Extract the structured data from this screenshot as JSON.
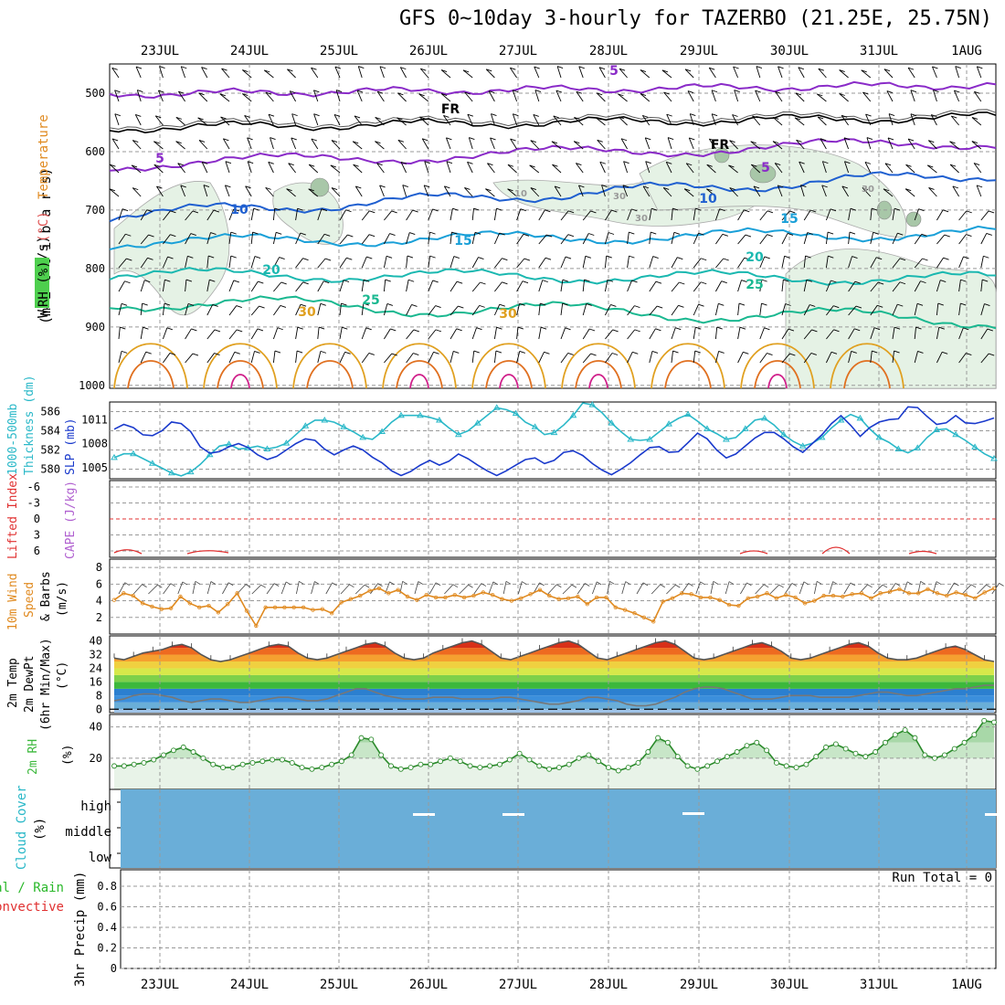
{
  "title": "GFS 0~10day 3-hourly for TAZERBO (21.25E, 25.75N)",
  "dates": [
    "23JUL",
    "24JUL",
    "25JUL",
    "26JUL",
    "27JUL",
    "28JUL",
    "29JUL",
    "30JUL",
    "31JUL",
    "1AUG"
  ],
  "colors": {
    "temperature": "#e05050",
    "wind": "#000000",
    "rh": "#3cb83c",
    "slp": "#1a3acc",
    "thickness": "#2ab8c8",
    "cape": "#b060d0",
    "lifted": "#e03030",
    "wind10m": "#e08a20",
    "cloud": "#6aaed8",
    "precip_total": "#2ab82a",
    "precip_conv": "#e03030",
    "rh_fill": "#e8f3e8"
  },
  "panels": {
    "upper": {
      "ylabel_parts": [
        "RH (%)",
        "Temperature",
        "(°C)",
        "Wind (m/s)"
      ],
      "ylabel_units": "(m i l l i b a r s)",
      "yticks": [
        500,
        600,
        700,
        800,
        900,
        1000
      ],
      "isotherm_labels": [
        "5",
        "5",
        "5",
        "10",
        "10",
        "15",
        "15",
        "20",
        "20",
        "25",
        "25",
        "30",
        "30",
        "FR",
        "FR",
        "10",
        "30",
        "30",
        "30"
      ]
    },
    "slp": {
      "ylabel_left": [
        "1000-500mb",
        "Thickness (dm)"
      ],
      "ylabel_right": "SLP (mb)",
      "left_ticks": [
        "586",
        "584",
        "582",
        "580"
      ],
      "right_ticks": [
        "1011",
        "1008",
        "1005"
      ]
    },
    "cape": {
      "ylabel": [
        "Lifted Index",
        "CAPE (J/kg)"
      ],
      "ticks": [
        "-6",
        "-3",
        "0",
        "3",
        "6"
      ]
    },
    "wind10m": {
      "ylabel": [
        "10m Wind",
        "Speed",
        "& Barbs",
        "(m/s)"
      ],
      "ticks": [
        "8",
        "6",
        "4",
        "2"
      ]
    },
    "temp2m": {
      "ylabel": [
        "2m Temp",
        "2m DewPt",
        "(6hr Min/Max)",
        "(°C)"
      ],
      "ticks": [
        "40",
        "32",
        "24",
        "16",
        "8",
        "0"
      ]
    },
    "rh2m": {
      "ylabel": [
        "2m RH",
        "(%)"
      ],
      "ticks": [
        "40",
        "20"
      ]
    },
    "cloud": {
      "ylabel": [
        "Cloud Cover",
        "(%)"
      ],
      "levels": [
        "high",
        "middle",
        "low"
      ]
    },
    "precip": {
      "ylabel": [
        "Total / Rain",
        "Convective",
        "3hr Precip (mm)"
      ],
      "ticks": [
        "0.8",
        "0.6",
        "0.4",
        "0.2",
        "0"
      ],
      "run_total": "Run Total = 0"
    }
  },
  "chart_data": [
    {
      "type": "line",
      "title": "1000-500mb Thickness (dm)",
      "x": "3-hourly steps from 22JUL 12Z (dates shown on axis)",
      "series": [
        {
          "name": "1000-500mb Thickness (dm)",
          "values": [
            581.2,
            581.6,
            581.6,
            581.1,
            580.6,
            580.1,
            579.6,
            579.3,
            579.7,
            580.5,
            581.5,
            582.4,
            582.6,
            582.1,
            582.2,
            582.4,
            582.1,
            582.3,
            582.7,
            583.6,
            584.5,
            585.1,
            585.1,
            584.9,
            584.4,
            583.9,
            583.3,
            583.1,
            583.9,
            584.9,
            585.6,
            585.6,
            585.6,
            585.4,
            585.1,
            584.3,
            583.6,
            584.0,
            584.8,
            585.6,
            586.4,
            586.2,
            585.8,
            584.9,
            584.4,
            583.6,
            583.8,
            584.6,
            585.6,
            586.9,
            586.7,
            585.9,
            584.8,
            583.9,
            583.1,
            583.0,
            583.1,
            583.9,
            584.7,
            585.3,
            585.7,
            585.0,
            584.2,
            583.7,
            583.1,
            583.3,
            584.2,
            585.1,
            585.3,
            584.6,
            583.6,
            582.9,
            582.4,
            582.7,
            583.3,
            584.3,
            585.1,
            585.7,
            585.3,
            584.2,
            583.3,
            582.8,
            582.1,
            581.7,
            582.2,
            583.3,
            584.1,
            584.2,
            583.6,
            583.0,
            582.3,
            581.6,
            581.1
          ]
        }
      ],
      "ylim": [
        579,
        587
      ]
    },
    {
      "type": "line",
      "title": "SLP (mb)",
      "series": [
        {
          "name": "SLP (mb)",
          "values": [
            1009.8,
            1010.4,
            1010.0,
            1009.1,
            1009.0,
            1009.6,
            1010.7,
            1010.5,
            1009.5,
            1007.6,
            1006.8,
            1007.0,
            1007.6,
            1008.0,
            1007.5,
            1006.6,
            1006.0,
            1006.4,
            1007.2,
            1008.0,
            1008.6,
            1008.4,
            1007.3,
            1006.6,
            1007.2,
            1007.7,
            1007.2,
            1006.3,
            1005.6,
            1004.6,
            1004.0,
            1004.5,
            1005.3,
            1005.9,
            1005.3,
            1005.8,
            1006.7,
            1006.1,
            1005.3,
            1004.6,
            1004.0,
            1004.6,
            1005.3,
            1006.0,
            1006.2,
            1005.5,
            1005.9,
            1006.9,
            1007.1,
            1006.5,
            1005.5,
            1004.7,
            1004.1,
            1004.8,
            1005.6,
            1006.6,
            1007.5,
            1007.6,
            1006.9,
            1007.0,
            1008.1,
            1009.3,
            1008.6,
            1007.2,
            1006.2,
            1006.7,
            1007.7,
            1008.7,
            1009.4,
            1009.4,
            1008.6,
            1007.6,
            1006.9,
            1008.0,
            1009.1,
            1010.5,
            1011.5,
            1010.3,
            1008.9,
            1010.0,
            1010.7,
            1011.0,
            1011.1,
            1012.6,
            1012.5,
            1011.4,
            1010.4,
            1010.6,
            1011.5,
            1010.6,
            1010.5,
            1010.8,
            1011.2
          ]
        }
      ],
      "ylim": [
        1003.6,
        1013.2
      ]
    },
    {
      "type": "line",
      "title": "10m Wind Speed (m/s)",
      "series": [
        {
          "name": "10m Wind Speed",
          "values": [
            4.1,
            4.9,
            4.6,
            3.7,
            3.3,
            3.0,
            3.1,
            4.5,
            3.7,
            3.2,
            3.4,
            2.6,
            3.6,
            4.9,
            2.8,
            1.0,
            3.2,
            3.2,
            3.2,
            3.2,
            3.2,
            2.9,
            3.0,
            2.5,
            3.8,
            4.2,
            4.6,
            5.2,
            5.5,
            4.9,
            5.3,
            4.5,
            4.1,
            4.7,
            4.4,
            4.4,
            4.7,
            4.4,
            4.6,
            5.0,
            4.7,
            4.2,
            4.0,
            4.3,
            4.8,
            5.3,
            4.6,
            4.2,
            4.3,
            4.5,
            3.6,
            4.4,
            4.4,
            3.2,
            2.9,
            2.5,
            2.0,
            1.5,
            3.9,
            4.3,
            4.9,
            4.8,
            4.4,
            4.4,
            4.1,
            3.5,
            3.4,
            4.3,
            4.5,
            4.9,
            4.3,
            4.7,
            4.4,
            3.7,
            4.0,
            4.6,
            4.6,
            4.5,
            4.8,
            4.9,
            4.3,
            4.9,
            5.1,
            5.4,
            4.9,
            4.9,
            5.4,
            4.9,
            4.6,
            5.0,
            4.7,
            4.3,
            5.0,
            5.5
          ]
        }
      ],
      "ylim": [
        0,
        9
      ]
    },
    {
      "type": "line",
      "title": "2m RH (%)",
      "series": [
        {
          "name": "2m RH",
          "values": [
            15,
            15,
            16,
            17,
            19,
            22,
            25,
            27,
            24,
            20,
            16,
            14,
            14,
            16,
            17,
            18,
            19,
            19,
            17,
            14,
            13,
            14,
            16,
            18,
            22,
            33,
            32,
            22,
            15,
            13,
            14,
            16,
            16,
            18,
            20,
            18,
            15,
            14,
            15,
            16,
            19,
            23,
            19,
            15,
            13,
            14,
            16,
            20,
            22,
            18,
            14,
            12,
            14,
            17,
            24,
            33,
            30,
            21,
            15,
            13,
            15,
            18,
            21,
            24,
            28,
            30,
            25,
            17,
            15,
            14,
            16,
            21,
            27,
            29,
            26,
            23,
            21,
            24,
            30,
            35,
            38,
            33,
            22,
            20,
            22,
            26,
            30,
            35,
            44,
            43
          ]
        }
      ],
      "ylim": [
        0,
        48
      ]
    },
    {
      "type": "area",
      "title": "2m Temp (6hr Min/Max) (°C)",
      "series": [
        {
          "name": "2m Temp",
          "values": [
            30,
            29,
            31,
            33,
            34,
            35,
            37,
            38,
            36,
            32,
            29,
            28,
            29,
            31,
            33,
            35,
            37,
            38,
            37,
            33,
            30,
            29,
            30,
            32,
            34,
            36,
            38,
            39,
            37,
            33,
            30,
            29,
            30,
            33,
            35,
            37,
            39,
            40,
            38,
            34,
            30,
            29,
            31,
            33,
            35,
            37,
            39,
            40,
            38,
            34,
            30,
            29,
            31,
            33,
            35,
            37,
            39,
            40,
            38,
            34,
            30,
            29,
            30,
            32,
            34,
            36,
            38,
            39,
            37,
            34,
            30,
            29,
            30,
            32,
            34,
            36,
            38,
            39,
            37,
            33,
            30,
            29,
            29,
            30,
            32,
            34,
            36,
            37,
            35,
            32,
            29,
            28
          ]
        },
        {
          "name": "2m DewPt",
          "values": [
            5,
            6,
            8,
            9,
            9,
            8,
            7,
            5,
            4,
            5,
            6,
            6,
            5,
            4,
            4,
            5,
            6,
            7,
            7,
            6,
            5,
            5,
            6,
            8,
            10,
            12,
            12,
            10,
            8,
            7,
            6,
            6,
            6,
            7,
            7,
            7,
            6,
            6,
            6,
            6,
            7,
            7,
            6,
            5,
            4,
            3,
            3,
            4,
            5,
            7,
            7,
            6,
            5,
            3,
            2,
            2,
            3,
            5,
            7,
            10,
            12,
            13,
            13,
            12,
            10,
            8,
            6,
            6,
            6,
            7,
            8,
            8,
            8,
            7,
            7,
            7,
            7,
            8,
            9,
            10,
            10,
            9,
            8,
            8,
            9,
            10,
            11,
            12,
            12,
            13,
            14,
            14
          ]
        }
      ],
      "ylim": [
        -2,
        43
      ]
    }
  ]
}
